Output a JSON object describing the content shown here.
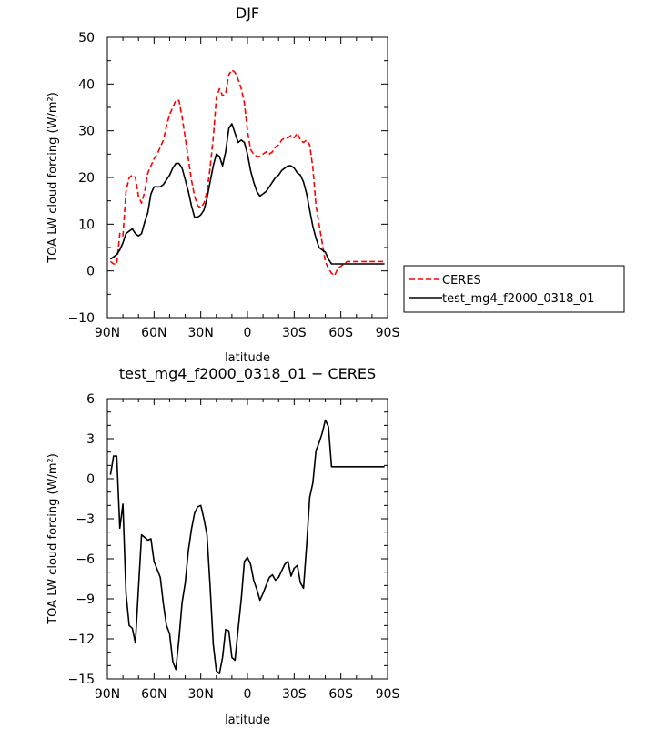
{
  "chart_data": [
    {
      "type": "line",
      "title": "DJF",
      "xlabel": "latitude",
      "ylabel": "TOA LW cloud forcing (W/m²)",
      "xlim": [
        90,
        -90
      ],
      "ylim": [
        -10,
        50
      ],
      "x_ticks": [
        90,
        60,
        30,
        0,
        -30,
        -60,
        -90
      ],
      "x_tick_labels": [
        "90N",
        "60N",
        "30N",
        "0",
        "30S",
        "60S",
        "90S"
      ],
      "y_ticks": [
        -10,
        0,
        10,
        20,
        30,
        40,
        50
      ],
      "y_tick_labels": [
        "−10",
        "0",
        "10",
        "20",
        "30",
        "40",
        "50"
      ],
      "legend": "right",
      "series": [
        {
          "name": "CERES",
          "color": "#ff0000",
          "dash": "dashed",
          "x": [
            88,
            86,
            84,
            82,
            80,
            78,
            76,
            74,
            72,
            70,
            68,
            66,
            64,
            62,
            60,
            58,
            56,
            54,
            52,
            50,
            48,
            46,
            44,
            42,
            40,
            38,
            36,
            34,
            32,
            30,
            28,
            26,
            24,
            22,
            20,
            18,
            16,
            14,
            12,
            10,
            8,
            6,
            4,
            2,
            0,
            -2,
            -4,
            -6,
            -8,
            -10,
            -12,
            -14,
            -16,
            -18,
            -20,
            -22,
            -24,
            -26,
            -28,
            -30,
            -32,
            -34,
            -36,
            -38,
            -40,
            -42,
            -44,
            -46,
            -48,
            -50,
            -52,
            -54,
            -56,
            -58,
            -60,
            -62,
            -64,
            -66,
            -68,
            -70,
            -72,
            -74,
            -76,
            -78,
            -80,
            -82,
            -84,
            -86,
            -88
          ],
          "values": [
            2.0,
            1.5,
            1.5,
            8.0,
            7.5,
            17.0,
            20.0,
            20.5,
            20.0,
            16.0,
            14.5,
            17.0,
            21.0,
            22.5,
            24.0,
            25.0,
            26.5,
            28.0,
            31.0,
            33.5,
            35.0,
            36.5,
            36.5,
            33.0,
            28.5,
            24.0,
            19.5,
            16.0,
            14.0,
            13.5,
            14.5,
            17.0,
            22.0,
            28.5,
            37.0,
            39.0,
            37.5,
            38.0,
            42.0,
            43.0,
            42.5,
            41.0,
            39.0,
            36.0,
            30.0,
            26.0,
            25.0,
            24.5,
            24.5,
            25.0,
            25.5,
            25.0,
            25.5,
            26.5,
            27.0,
            28.0,
            28.5,
            28.5,
            29.0,
            28.5,
            29.5,
            28.0,
            27.5,
            28.0,
            27.0,
            22.0,
            14.0,
            10.0,
            6.0,
            2.0,
            0.5,
            -0.5,
            -1.0,
            0.5,
            1.0,
            1.5,
            2.0,
            2.0,
            2.0,
            2.0,
            2.0,
            2.0,
            2.0,
            2.0,
            2.0,
            2.0,
            2.0,
            2.0,
            2.0
          ]
        },
        {
          "name": "test_mg4_f2000_0318_01",
          "color": "#000000",
          "dash": "solid",
          "x": [
            88,
            86,
            84,
            82,
            80,
            78,
            76,
            74,
            72,
            70,
            68,
            66,
            64,
            62,
            60,
            58,
            56,
            54,
            52,
            50,
            48,
            46,
            44,
            42,
            40,
            38,
            36,
            34,
            32,
            30,
            28,
            26,
            24,
            22,
            20,
            18,
            16,
            14,
            12,
            10,
            8,
            6,
            4,
            2,
            0,
            -2,
            -4,
            -6,
            -8,
            -10,
            -12,
            -14,
            -16,
            -18,
            -20,
            -22,
            -24,
            -26,
            -28,
            -30,
            -32,
            -34,
            -36,
            -38,
            -40,
            -42,
            -44,
            -46,
            -48,
            -50,
            -52,
            -54,
            -56,
            -58,
            -60,
            -62,
            -64,
            -66,
            -68,
            -70,
            -72,
            -74,
            -76,
            -78,
            -80,
            -82,
            -84,
            -86,
            -88
          ],
          "values": [
            2.5,
            3.0,
            3.5,
            4.5,
            6.0,
            8.0,
            8.5,
            9.0,
            8.0,
            7.5,
            8.0,
            10.5,
            12.5,
            16.5,
            18.0,
            18.0,
            18.0,
            18.5,
            19.5,
            20.5,
            22.0,
            23.0,
            23.0,
            22.0,
            19.5,
            17.0,
            14.0,
            11.5,
            11.5,
            12.0,
            13.0,
            15.5,
            19.0,
            22.5,
            25.0,
            24.5,
            22.5,
            25.5,
            30.5,
            31.5,
            29.5,
            27.5,
            28.0,
            27.5,
            25.0,
            21.5,
            19.0,
            17.0,
            16.0,
            16.5,
            17.0,
            18.0,
            19.0,
            20.0,
            20.5,
            21.5,
            22.0,
            22.5,
            22.5,
            22.0,
            21.0,
            20.5,
            19.0,
            16.5,
            13.0,
            9.5,
            7.0,
            5.0,
            4.5,
            4.0,
            2.5,
            1.5,
            1.5,
            1.5,
            1.5,
            1.5,
            1.5,
            1.5,
            1.5,
            1.5,
            1.5,
            1.5,
            1.5,
            1.5,
            1.5,
            1.5,
            1.5,
            1.5,
            1.5
          ]
        }
      ]
    },
    {
      "type": "line",
      "title": "test_mg4_f2000_0318_01 − CERES",
      "xlabel": "latitude",
      "ylabel": "TOA LW cloud forcing (W/m²)",
      "xlim": [
        90,
        -90
      ],
      "ylim": [
        -15,
        6
      ],
      "x_ticks": [
        90,
        60,
        30,
        0,
        -30,
        -60,
        -90
      ],
      "x_tick_labels": [
        "90N",
        "60N",
        "30N",
        "0",
        "30S",
        "60S",
        "90S"
      ],
      "y_ticks": [
        -15,
        -12,
        -9,
        -6,
        -3,
        0,
        3,
        6
      ],
      "y_tick_labels": [
        "−15",
        "−12",
        "−9",
        "−6",
        "−3",
        "0",
        "3",
        "6"
      ],
      "series": [
        {
          "color": "#000000",
          "x": [
            88,
            86,
            84,
            82,
            80,
            78,
            76,
            74,
            72,
            70,
            68,
            66,
            64,
            62,
            60,
            58,
            56,
            54,
            52,
            50,
            48,
            46,
            44,
            42,
            40,
            38,
            36,
            34,
            32,
            30,
            28,
            26,
            24,
            22,
            20,
            18,
            16,
            14,
            12,
            10,
            8,
            6,
            4,
            2,
            0,
            -2,
            -4,
            -6,
            -8,
            -10,
            -12,
            -14,
            -16,
            -18,
            -20,
            -22,
            -24,
            -26,
            -28,
            -30,
            -32,
            -34,
            -36,
            -38,
            -40,
            -42,
            -44,
            -46,
            -48,
            -50,
            -52,
            -54,
            -56,
            -58,
            -60,
            -62,
            -64,
            -66,
            -68,
            -70,
            -72,
            -74,
            -76,
            -78,
            -80,
            -82,
            -84,
            -86,
            -88
          ],
          "values": [
            0.3,
            1.7,
            1.7,
            -3.7,
            -1.9,
            -8.6,
            -11.0,
            -11.2,
            -12.3,
            -8.2,
            -4.2,
            -4.4,
            -4.6,
            -4.5,
            -6.2,
            -6.8,
            -7.4,
            -9.4,
            -11.0,
            -11.6,
            -13.7,
            -14.3,
            -12.0,
            -9.3,
            -7.8,
            -5.4,
            -3.8,
            -2.6,
            -2.1,
            -2.0,
            -3.0,
            -4.2,
            -8.0,
            -12.4,
            -14.4,
            -14.6,
            -13.4,
            -11.3,
            -11.4,
            -13.4,
            -13.6,
            -11.3,
            -9.0,
            -6.2,
            -5.9,
            -6.4,
            -7.6,
            -8.3,
            -9.1,
            -8.6,
            -8.0,
            -7.4,
            -7.2,
            -7.6,
            -7.4,
            -6.9,
            -6.4,
            -6.2,
            -7.3,
            -6.7,
            -6.5,
            -7.8,
            -8.2,
            -5.0,
            -1.4,
            -0.3,
            2.1,
            2.7,
            3.4,
            4.4,
            3.9,
            0.9,
            0.9,
            0.9,
            0.9,
            0.9,
            0.9,
            0.9,
            0.9,
            0.9,
            0.9,
            0.9,
            0.9,
            0.9,
            0.9,
            0.9,
            0.9,
            0.9,
            0.9
          ]
        }
      ]
    }
  ]
}
